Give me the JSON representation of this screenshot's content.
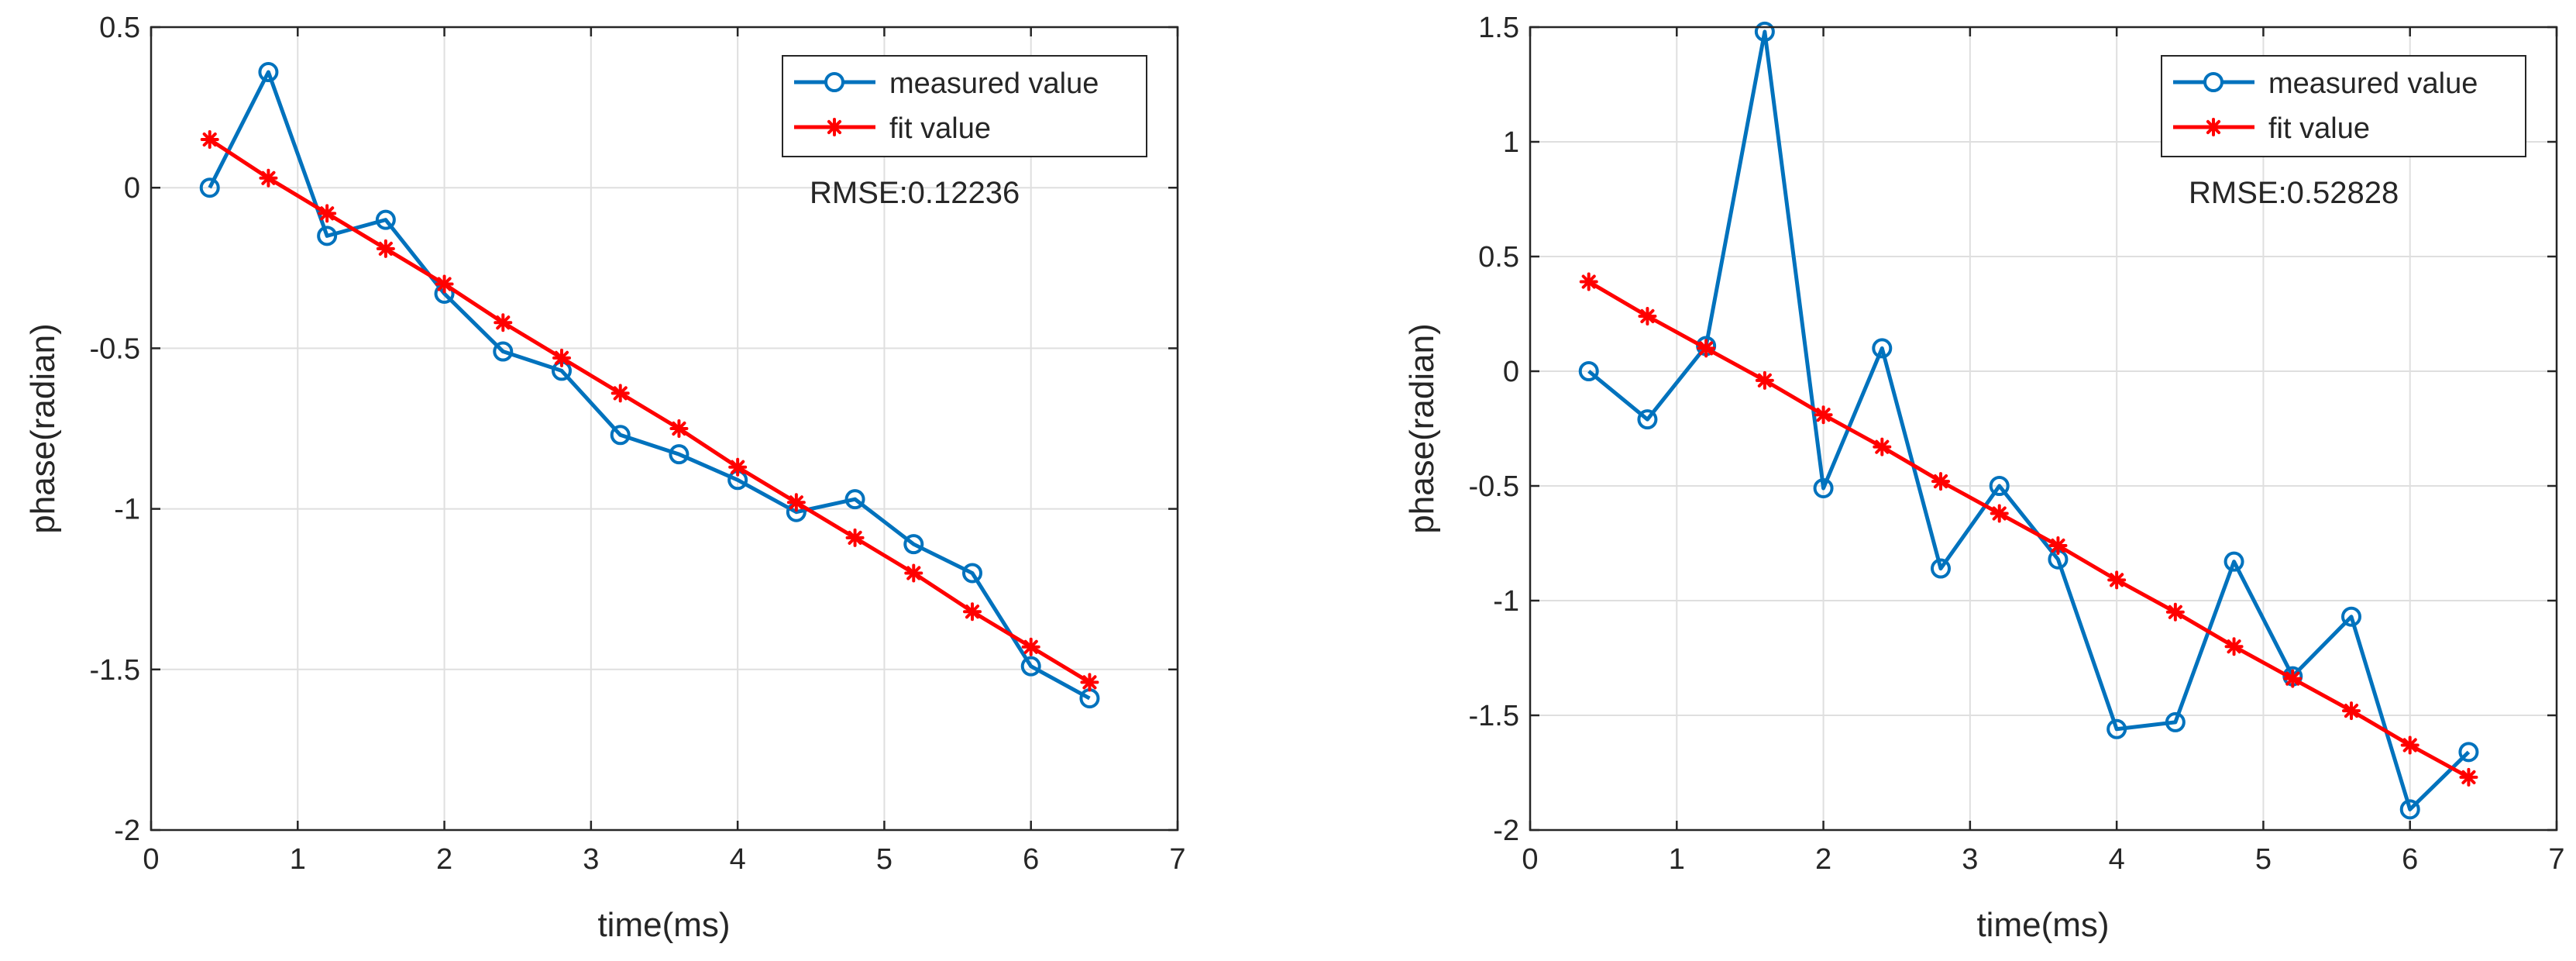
{
  "colors": {
    "measured": "#0072BD",
    "fit": "#FF0000",
    "grid": "#DFDFDF",
    "axis": "#262626"
  },
  "chart_data": [
    {
      "type": "line",
      "xlabel": "time(ms)",
      "ylabel": "phase(radian)",
      "xlim": [
        0,
        7
      ],
      "ylim": [
        -2,
        0.5
      ],
      "xticks": [
        0,
        1,
        2,
        3,
        4,
        5,
        6,
        7
      ],
      "yticks": [
        -2,
        -1.5,
        -1,
        -0.5,
        0,
        0.5
      ],
      "xtick_labels": [
        "0",
        "1",
        "2",
        "3",
        "4",
        "5",
        "6",
        "7"
      ],
      "ytick_labels": [
        "-2",
        "-1.5",
        "-1",
        "-0.5",
        "0",
        "0.5"
      ],
      "grid": true,
      "legend_position": "top-right",
      "annotation": "RMSE:0.12236",
      "series": [
        {
          "name": "measured value",
          "marker": "circle",
          "x": [
            0.4,
            0.8,
            1.2,
            1.6,
            2.0,
            2.4,
            2.8,
            3.2,
            3.6,
            4.0,
            4.4,
            4.8,
            5.2,
            5.6,
            6.0,
            6.4
          ],
          "values": [
            0.0,
            0.36,
            -0.15,
            -0.1,
            -0.33,
            -0.51,
            -0.57,
            -0.77,
            -0.83,
            -0.91,
            -1.01,
            -0.97,
            -1.11,
            -1.2,
            -1.49,
            -1.59
          ]
        },
        {
          "name": "fit value",
          "marker": "asterisk",
          "x": [
            0.4,
            0.8,
            1.2,
            1.6,
            2.0,
            2.4,
            2.8,
            3.2,
            3.6,
            4.0,
            4.4,
            4.8,
            5.2,
            5.6,
            6.0,
            6.4
          ],
          "values": [
            0.15,
            0.03,
            -0.08,
            -0.19,
            -0.3,
            -0.42,
            -0.53,
            -0.64,
            -0.75,
            -0.87,
            -0.98,
            -1.09,
            -1.2,
            -1.32,
            -1.43,
            -1.54
          ]
        }
      ]
    },
    {
      "type": "line",
      "xlabel": "time(ms)",
      "ylabel": "phase(radian)",
      "xlim": [
        0,
        7
      ],
      "ylim": [
        -2,
        1.5
      ],
      "xticks": [
        0,
        1,
        2,
        3,
        4,
        5,
        6,
        7
      ],
      "yticks": [
        -2,
        -1.5,
        -1,
        -0.5,
        0,
        0.5,
        1,
        1.5
      ],
      "xtick_labels": [
        "0",
        "1",
        "2",
        "3",
        "4",
        "5",
        "6",
        "7"
      ],
      "ytick_labels": [
        "-2",
        "-1.5",
        "-1",
        "-0.5",
        "0",
        "0.5",
        "1",
        "1.5"
      ],
      "grid": true,
      "legend_position": "top-right",
      "annotation": "RMSE:0.52828",
      "series": [
        {
          "name": "measured value",
          "marker": "circle",
          "x": [
            0.4,
            0.8,
            1.2,
            1.6,
            2.0,
            2.4,
            2.8,
            3.2,
            3.6,
            4.0,
            4.4,
            4.8,
            5.2,
            5.6,
            6.0,
            6.4
          ],
          "values": [
            0.0,
            -0.21,
            0.11,
            1.48,
            -0.51,
            0.1,
            -0.86,
            -0.5,
            -0.82,
            -1.56,
            -1.53,
            -0.83,
            -1.33,
            -1.07,
            -1.91,
            -1.66
          ]
        },
        {
          "name": "fit value",
          "marker": "asterisk",
          "x": [
            0.4,
            0.8,
            1.2,
            1.6,
            2.0,
            2.4,
            2.8,
            3.2,
            3.6,
            4.0,
            4.4,
            4.8,
            5.2,
            5.6,
            6.0,
            6.4
          ],
          "values": [
            0.39,
            0.24,
            0.1,
            -0.04,
            -0.19,
            -0.33,
            -0.48,
            -0.62,
            -0.76,
            -0.91,
            -1.05,
            -1.2,
            -1.34,
            -1.48,
            -1.63,
            -1.77
          ]
        }
      ]
    }
  ]
}
